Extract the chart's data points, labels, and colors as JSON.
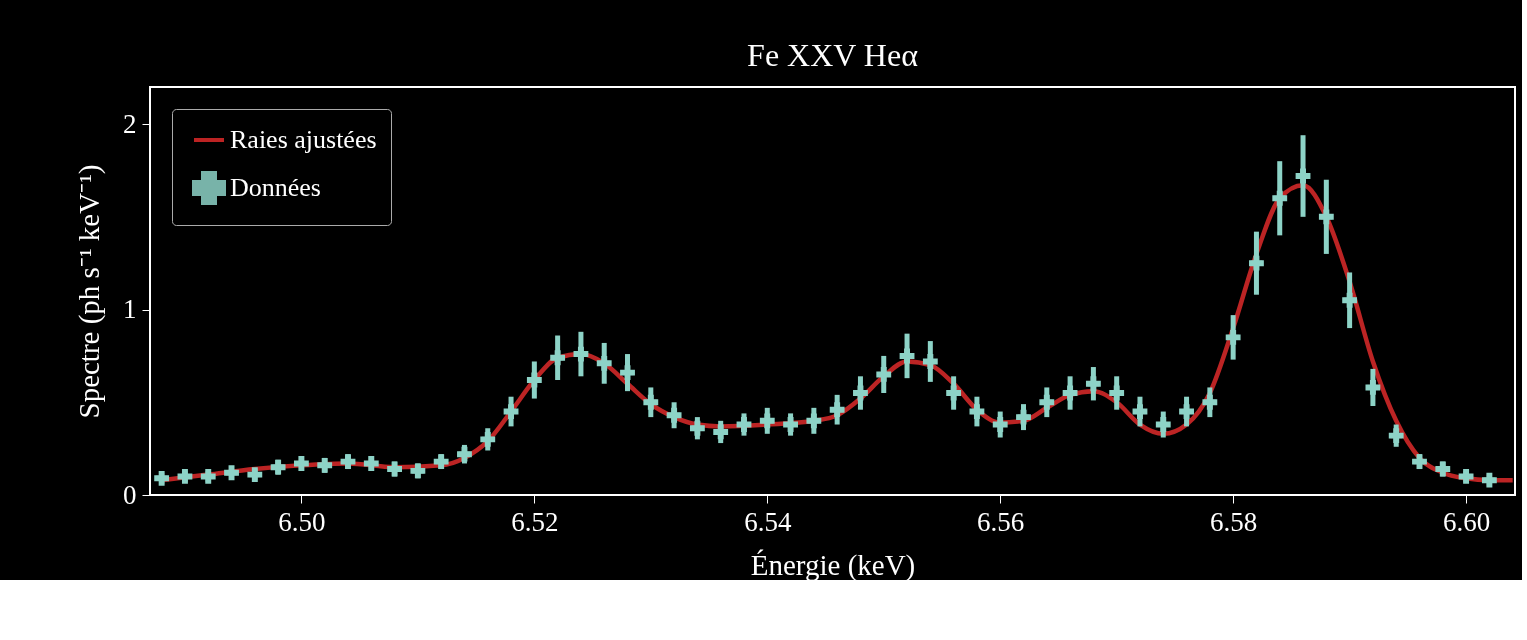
{
  "chart_data": {
    "type": "scatter",
    "title": "Fe XXV Heα",
    "xlabel": "Énergie (keV)",
    "ylabel": "Spectre (ph s⁻¹ keV⁻¹)",
    "xlim": [
      6.487,
      6.6042
    ],
    "ylim": [
      0,
      2.2
    ],
    "xticks": [
      {
        "value": 6.5,
        "label": "6.50"
      },
      {
        "value": 6.52,
        "label": "6.52"
      },
      {
        "value": 6.54,
        "label": "6.54"
      },
      {
        "value": 6.56,
        "label": "6.56"
      },
      {
        "value": 6.58,
        "label": "6.58"
      },
      {
        "value": 6.6,
        "label": "6.60"
      }
    ],
    "yticks": [
      0,
      1,
      2
    ],
    "grid": false,
    "legend": "top left",
    "series": [
      {
        "name": "Raies ajustées",
        "type": "line",
        "color": "#dd2a2a",
        "x": [
          6.488,
          6.492,
          6.496,
          6.5,
          6.504,
          6.508,
          6.512,
          6.514,
          6.516,
          6.518,
          6.52,
          6.522,
          6.524,
          6.526,
          6.528,
          6.53,
          6.532,
          6.534,
          6.536,
          6.54,
          6.544,
          6.546,
          6.548,
          6.55,
          6.552,
          6.554,
          6.556,
          6.558,
          6.56,
          6.562,
          6.564,
          6.566,
          6.568,
          6.57,
          6.572,
          6.574,
          6.576,
          6.578,
          6.58,
          6.582,
          6.584,
          6.586,
          6.588,
          6.59,
          6.592,
          6.594,
          6.596,
          6.598,
          6.6,
          6.602,
          6.604
        ],
        "values": [
          0.08,
          0.11,
          0.14,
          0.16,
          0.17,
          0.15,
          0.16,
          0.2,
          0.29,
          0.45,
          0.62,
          0.74,
          0.76,
          0.71,
          0.6,
          0.49,
          0.42,
          0.38,
          0.37,
          0.38,
          0.4,
          0.43,
          0.52,
          0.64,
          0.72,
          0.7,
          0.6,
          0.46,
          0.39,
          0.4,
          0.47,
          0.54,
          0.56,
          0.5,
          0.38,
          0.33,
          0.38,
          0.55,
          0.9,
          1.3,
          1.6,
          1.67,
          1.5,
          1.15,
          0.72,
          0.4,
          0.2,
          0.12,
          0.09,
          0.08,
          0.08
        ]
      },
      {
        "name": "Données",
        "type": "scatter",
        "color": "#8dd3c7",
        "x": [
          6.488,
          6.49,
          6.492,
          6.494,
          6.496,
          6.498,
          6.5,
          6.502,
          6.504,
          6.506,
          6.508,
          6.51,
          6.512,
          6.514,
          6.516,
          6.518,
          6.52,
          6.522,
          6.524,
          6.526,
          6.528,
          6.53,
          6.532,
          6.534,
          6.536,
          6.538,
          6.54,
          6.542,
          6.544,
          6.546,
          6.548,
          6.55,
          6.552,
          6.554,
          6.556,
          6.558,
          6.56,
          6.562,
          6.564,
          6.566,
          6.568,
          6.57,
          6.572,
          6.574,
          6.576,
          6.578,
          6.58,
          6.582,
          6.584,
          6.586,
          6.588,
          6.59,
          6.592,
          6.594,
          6.596,
          6.598,
          6.6,
          6.602
        ],
        "values": [
          0.09,
          0.1,
          0.1,
          0.12,
          0.11,
          0.15,
          0.17,
          0.16,
          0.18,
          0.17,
          0.14,
          0.13,
          0.18,
          0.22,
          0.3,
          0.45,
          0.62,
          0.74,
          0.76,
          0.71,
          0.66,
          0.5,
          0.43,
          0.36,
          0.34,
          0.38,
          0.4,
          0.38,
          0.4,
          0.46,
          0.55,
          0.65,
          0.75,
          0.72,
          0.55,
          0.45,
          0.38,
          0.42,
          0.5,
          0.55,
          0.6,
          0.55,
          0.45,
          0.38,
          0.45,
          0.5,
          0.85,
          1.25,
          1.6,
          1.72,
          1.5,
          1.05,
          0.58,
          0.32,
          0.18,
          0.14,
          0.1,
          0.08
        ],
        "errors": [
          0.03,
          0.03,
          0.03,
          0.03,
          0.03,
          0.04,
          0.04,
          0.04,
          0.04,
          0.04,
          0.04,
          0.04,
          0.04,
          0.05,
          0.06,
          0.08,
          0.1,
          0.12,
          0.12,
          0.11,
          0.1,
          0.08,
          0.07,
          0.06,
          0.06,
          0.06,
          0.07,
          0.06,
          0.07,
          0.08,
          0.09,
          0.1,
          0.12,
          0.11,
          0.09,
          0.08,
          0.07,
          0.07,
          0.08,
          0.09,
          0.09,
          0.09,
          0.08,
          0.07,
          0.08,
          0.08,
          0.12,
          0.17,
          0.2,
          0.22,
          0.2,
          0.15,
          0.1,
          0.06,
          0.04,
          0.04,
          0.03,
          0.03
        ],
        "xerrors": [
          0.0005,
          0.0005,
          0.0005,
          0.0005,
          0.0005,
          0.0005,
          0.0005,
          0.0005,
          0.0005,
          0.0005,
          0.0005,
          0.0005,
          0.0005,
          0.0005,
          0.0005,
          0.0005,
          0.0005,
          0.0005,
          0.0005,
          0.0005,
          0.0005,
          0.0005,
          0.0005,
          0.0005,
          0.0005,
          0.0005,
          0.0005,
          0.0005,
          0.0005,
          0.0005,
          0.0005,
          0.0005,
          0.0005,
          0.0005,
          0.0005,
          0.0005,
          0.0005,
          0.0005,
          0.0005,
          0.0005,
          0.0005,
          0.0005,
          0.0005,
          0.0005,
          0.0005,
          0.0005,
          0.0005,
          0.0005,
          0.0005,
          0.0005,
          0.0005,
          0.0005,
          0.0005,
          0.0005,
          0.0005,
          0.0005,
          0.0005,
          0.0005
        ]
      }
    ]
  }
}
